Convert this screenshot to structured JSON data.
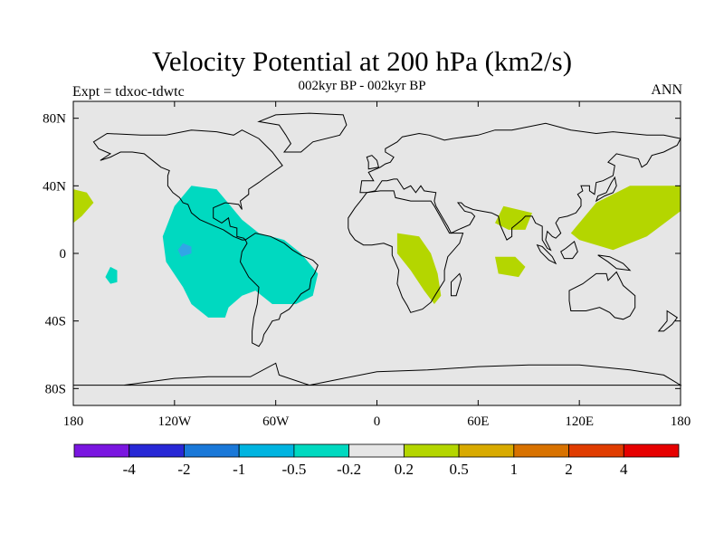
{
  "title": "Velocity Potential at 200 hPa (km2/s)",
  "subtitle": "002kyr BP - 002kyr BP",
  "left_label": "Expt = tdxoc-tdwtc",
  "right_label": "ANN",
  "map": {
    "projection": "cylindrical-equidistant",
    "lon_range": [
      -180,
      180
    ],
    "lat_range": [
      -90,
      90
    ],
    "land_outline_color": "#000000",
    "background_fill": "#e6e6e6",
    "lat_ticks": [
      {
        "lat": 80,
        "label": "80N"
      },
      {
        "lat": 40,
        "label": "40N"
      },
      {
        "lat": 0,
        "label": "0"
      },
      {
        "lat": -40,
        "label": "40S"
      },
      {
        "lat": -80,
        "label": "80S"
      }
    ],
    "lon_ticks": [
      {
        "lon": -180,
        "label": "180"
      },
      {
        "lon": -120,
        "label": "120W"
      },
      {
        "lon": -60,
        "label": "60W"
      },
      {
        "lon": 0,
        "label": "0"
      },
      {
        "lon": 60,
        "label": "60E"
      },
      {
        "lon": 120,
        "label": "120E"
      },
      {
        "lon": 180,
        "label": "180"
      }
    ],
    "anomaly_regions": [
      {
        "name": "eastern-pacific-americas-negative",
        "color": "#00d9c0",
        "outline": [
          [
            -110,
            40
          ],
          [
            -95,
            38
          ],
          [
            -80,
            20
          ],
          [
            -70,
            12
          ],
          [
            -55,
            8
          ],
          [
            -45,
            0
          ],
          [
            -35,
            -12
          ],
          [
            -38,
            -25
          ],
          [
            -48,
            -30
          ],
          [
            -62,
            -30
          ],
          [
            -72,
            -22
          ],
          [
            -80,
            -25
          ],
          [
            -88,
            -32
          ],
          [
            -90,
            -38
          ],
          [
            -100,
            -38
          ],
          [
            -110,
            -30
          ],
          [
            -115,
            -20
          ],
          [
            -125,
            -5
          ],
          [
            -127,
            10
          ],
          [
            -120,
            28
          ]
        ]
      },
      {
        "name": "central-pacific-negative-blob",
        "color": "#00d9c0",
        "outline": [
          [
            -158,
            -8
          ],
          [
            -154,
            -10
          ],
          [
            -154,
            -17
          ],
          [
            -158,
            -18
          ],
          [
            -161,
            -14
          ]
        ]
      },
      {
        "name": "eastern-pacific-stronger-negative",
        "color": "#31a6e6",
        "outline": [
          [
            -115,
            6
          ],
          [
            -110,
            4
          ],
          [
            -110,
            0
          ],
          [
            -116,
            -2
          ],
          [
            -118,
            2
          ]
        ]
      },
      {
        "name": "western-pacific-positive-north",
        "color": "#b4d600",
        "outline": [
          [
            -180,
            38
          ],
          [
            -172,
            36
          ],
          [
            -168,
            30
          ],
          [
            -175,
            22
          ],
          [
            -180,
            18
          ]
        ]
      },
      {
        "name": "africa-positive",
        "color": "#b4d600",
        "outline": [
          [
            12,
            12
          ],
          [
            25,
            10
          ],
          [
            32,
            0
          ],
          [
            36,
            -12
          ],
          [
            38,
            -25
          ],
          [
            34,
            -30
          ],
          [
            28,
            -22
          ],
          [
            20,
            -10
          ],
          [
            12,
            0
          ]
        ]
      },
      {
        "name": "arabian-sea-positive",
        "color": "#b4d600",
        "outline": [
          [
            75,
            28
          ],
          [
            92,
            24
          ],
          [
            88,
            14
          ],
          [
            78,
            14
          ],
          [
            70,
            18
          ]
        ]
      },
      {
        "name": "indian-ocean-positive",
        "color": "#b4d600",
        "outline": [
          [
            70,
            -2
          ],
          [
            82,
            -2
          ],
          [
            88,
            -8
          ],
          [
            84,
            -14
          ],
          [
            72,
            -12
          ]
        ]
      },
      {
        "name": "western-pacific-positive",
        "color": "#b4d600",
        "outline": [
          [
            115,
            12
          ],
          [
            130,
            30
          ],
          [
            150,
            40
          ],
          [
            180,
            40
          ],
          [
            180,
            25
          ],
          [
            160,
            10
          ],
          [
            140,
            2
          ],
          [
            120,
            8
          ]
        ]
      }
    ]
  },
  "colorbar": {
    "colors": [
      "#7a16e0",
      "#2828d6",
      "#1a78d8",
      "#00b4e0",
      "#00d9c0",
      "#e6e6e6",
      "#b4d600",
      "#d8aa00",
      "#d87200",
      "#e03c00",
      "#e60000"
    ],
    "labels": [
      "-4",
      "-2",
      "-1",
      "-0.5",
      "-0.2",
      "0.2",
      "0.5",
      "1",
      "2",
      "4"
    ]
  }
}
